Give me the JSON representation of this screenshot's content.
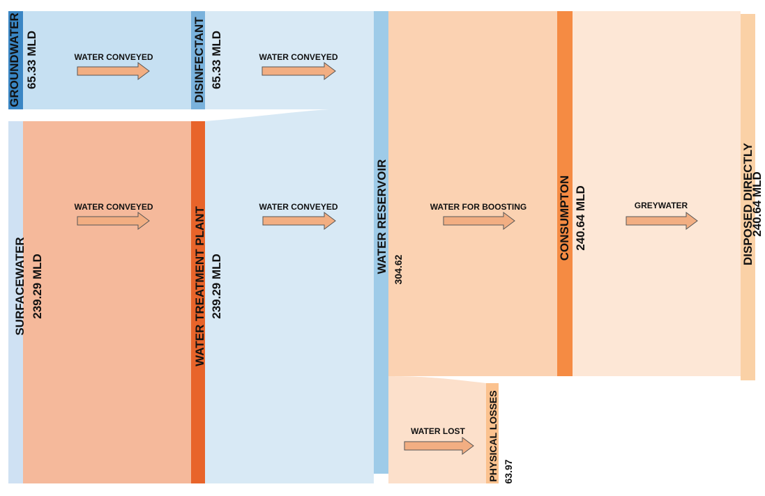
{
  "nodes": {
    "groundwater": {
      "name": "GROUNDWATER",
      "value": "65.33 MLD",
      "color": "#3a86c4"
    },
    "surfacewater": {
      "name": "SURFACEWATER",
      "value": "239.29 MLD",
      "color": "#cfe1f3"
    },
    "disinfectant": {
      "name": "DISINFECTANT",
      "value": "65.33 MLD",
      "color": "#7ab2dc"
    },
    "wtp": {
      "name": "WATER TREATMENT PLANT",
      "value": "239.29 MLD",
      "color": "#e8642a"
    },
    "reservoir": {
      "name": "WATER RESERVOIR",
      "value": "304.62",
      "color": "#9ecbe8"
    },
    "consumption": {
      "name": "CONSUMPTON",
      "value": "240.64 MLD",
      "color": "#f58b43"
    },
    "disposed": {
      "name": "DISPOSED DIRECTLY",
      "value": "240.64 MLD",
      "color": "#fad1a6"
    },
    "losses": {
      "name": "PHYSICAL LOSSES",
      "value": "63.97",
      "color": "#fbc28f"
    }
  },
  "flows": {
    "gw_to_dis": {
      "label": "WATER CONVEYED",
      "color": "#c6e0f2"
    },
    "sw_to_wtp": {
      "label": "WATER CONVEYED",
      "color": "#f5b99b"
    },
    "dis_to_res": {
      "label": "WATER CONVEYED",
      "color": "#d8e9f5"
    },
    "wtp_to_res": {
      "label": "WATER CONVEYED",
      "color": "#d8e9f5"
    },
    "res_to_cons": {
      "label": "WATER FOR BOOSTING",
      "color": "#fbd2b2"
    },
    "res_to_loss": {
      "label": "WATER LOST",
      "color": "#fce0cb"
    },
    "cons_to_disp": {
      "label": "GREYWATER",
      "color": "#fde7d6"
    }
  },
  "arrow_color": "#f2ae82"
}
